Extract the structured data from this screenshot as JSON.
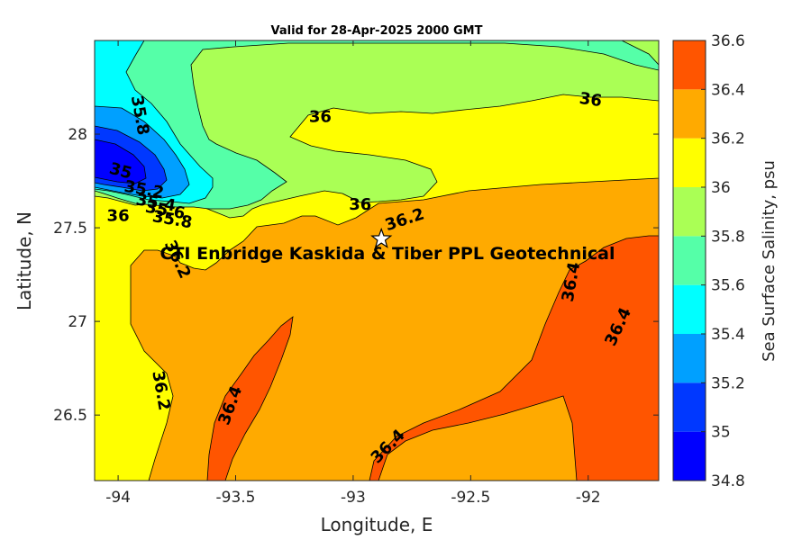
{
  "chart_data": {
    "type": "contourf",
    "title": "Valid for 28-Apr-2025 2000 GMT",
    "xlabel": "Longitude, E",
    "ylabel": "Latitude, N",
    "xlim": [
      -94.1,
      -91.7
    ],
    "ylim": [
      26.15,
      28.5
    ],
    "xticks": [
      -94,
      -93.5,
      -93,
      -92.5,
      -92
    ],
    "yticks": [
      26.5,
      27,
      27.5,
      28
    ],
    "colorbar": {
      "label": "Sea Surface Salinity, psu",
      "levels": [
        34.8,
        35,
        35.2,
        35.4,
        35.6,
        35.8,
        36,
        36.2,
        36.4,
        36.6
      ],
      "ticks": [
        34.8,
        35,
        35.2,
        35.4,
        35.6,
        35.8,
        36,
        36.2,
        36.4,
        36.6
      ],
      "colors": [
        "#0000ff",
        "#0038ff",
        "#00a0ff",
        "#00ffff",
        "#55ffa8",
        "#aaff55",
        "#ffff00",
        "#ffaa00",
        "#ff5500"
      ]
    },
    "contour_labels": [
      {
        "text": "35.8",
        "x": -93.91,
        "y": 28.1,
        "angle": 80
      },
      {
        "text": "36",
        "x": -93.14,
        "y": 28.09,
        "angle": 0
      },
      {
        "text": "36",
        "x": -91.99,
        "y": 28.18,
        "angle": 8
      },
      {
        "text": "35",
        "x": -93.99,
        "y": 27.8,
        "angle": 15
      },
      {
        "text": "35.2",
        "x": -93.89,
        "y": 27.7,
        "angle": 10
      },
      {
        "text": "35.4",
        "x": -93.84,
        "y": 27.63,
        "angle": 10
      },
      {
        "text": "35.6",
        "x": -93.8,
        "y": 27.59,
        "angle": 10
      },
      {
        "text": "35.8",
        "x": -93.77,
        "y": 27.54,
        "angle": 10
      },
      {
        "text": "36",
        "x": -94.0,
        "y": 27.56,
        "angle": 0
      },
      {
        "text": "36",
        "x": -92.97,
        "y": 27.62,
        "angle": 0
      },
      {
        "text": "36.2",
        "x": -92.78,
        "y": 27.54,
        "angle": -18
      },
      {
        "text": "36.2",
        "x": -93.75,
        "y": 27.33,
        "angle": 65
      },
      {
        "text": "36.4",
        "x": -92.07,
        "y": 27.21,
        "angle": -80
      },
      {
        "text": "36.2",
        "x": -93.82,
        "y": 26.63,
        "angle": 80
      },
      {
        "text": "36.4",
        "x": -93.52,
        "y": 26.55,
        "angle": -70
      },
      {
        "text": "36.4",
        "x": -91.87,
        "y": 26.97,
        "angle": -65
      },
      {
        "text": "36.4",
        "x": -92.85,
        "y": 26.33,
        "angle": -45
      }
    ],
    "marker": {
      "label": "CTI Enbridge  Kaskida & Tiber PPL Geotechnical",
      "x": -92.88,
      "y": 27.44
    }
  }
}
